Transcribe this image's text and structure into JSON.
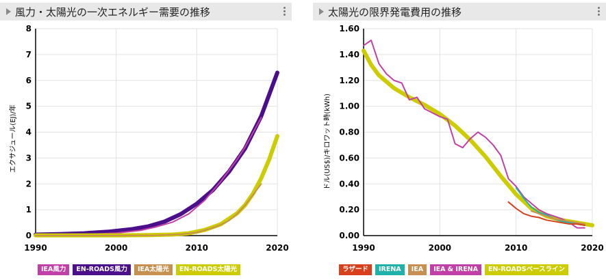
{
  "charts": {
    "left": {
      "title": "風力・太陽光の一次エネルギー需要の推移",
      "ylabel": "エクサジュール(EJ)/年"
    },
    "right": {
      "title": "太陽光の限界発電費用の推移",
      "ylabel": "ドル(US$)/キロワット時(kWh)"
    }
  },
  "legends": {
    "left": [
      {
        "label": "IEA風力",
        "color": "#c040a8"
      },
      {
        "label": "EN-ROADS風力",
        "color": "#4b0f8c"
      },
      {
        "label": "IEA太陽光",
        "color": "#c89050"
      },
      {
        "label": "EN-ROADS太陽光",
        "color": "#cccc00"
      }
    ],
    "right": [
      {
        "label": "ラザード",
        "color": "#d8401c"
      },
      {
        "label": "IRENA",
        "color": "#20b2aa"
      },
      {
        "label": "IEA",
        "color": "#c89050"
      },
      {
        "label": "IEA & IRENA",
        "color": "#c040a8"
      },
      {
        "label": "EN-ROADSベースライン",
        "color": "#cccc00"
      }
    ]
  },
  "chart_data": [
    {
      "type": "line",
      "title": "風力・太陽光の一次エネルギー需要の推移",
      "xlabel": "",
      "ylabel": "エクサジュール(EJ)/年",
      "xlim": [
        1990,
        2020
      ],
      "ylim": [
        0,
        8
      ],
      "xticks": [
        1990,
        2000,
        2010,
        2020
      ],
      "yticks": [
        0,
        1,
        2,
        3,
        4,
        5,
        6,
        7,
        8
      ],
      "ytick_labels": [
        "0",
        "1",
        "2",
        "3",
        "4",
        "5",
        "6",
        "7",
        "8"
      ],
      "series": [
        {
          "name": "EN-ROADS風力",
          "color": "#4b0f8c",
          "width": 6,
          "x": [
            1990,
            1993,
            1996,
            1999,
            2002,
            2004,
            2006,
            2008,
            2010,
            2012,
            2014,
            2016,
            2018,
            2020
          ],
          "y": [
            0.04,
            0.06,
            0.09,
            0.15,
            0.25,
            0.36,
            0.54,
            0.83,
            1.23,
            1.76,
            2.47,
            3.37,
            4.62,
            6.3
          ]
        },
        {
          "name": "IEA風力",
          "color": "#c040a8",
          "width": 2,
          "x": [
            1990,
            1995,
            2000,
            2003,
            2005,
            2007,
            2009,
            2011,
            2013,
            2015,
            2016,
            2017,
            2018
          ],
          "y": [
            0.01,
            0.03,
            0.1,
            0.2,
            0.34,
            0.52,
            0.84,
            1.37,
            2.1,
            2.94,
            3.42,
            3.99,
            4.56
          ]
        },
        {
          "name": "EN-ROADS太陽光",
          "color": "#cccc00",
          "width": 6,
          "x": [
            1990,
            1996,
            2000,
            2004,
            2007,
            2009,
            2011,
            2013,
            2015,
            2016,
            2017,
            2018,
            2019,
            2020
          ],
          "y": [
            0.01,
            0.01,
            0.01,
            0.02,
            0.04,
            0.09,
            0.22,
            0.44,
            0.86,
            1.18,
            1.63,
            2.22,
            2.95,
            3.85
          ]
        },
        {
          "name": "IEA太陽光",
          "color": "#c89050",
          "width": 2,
          "x": [
            1990,
            2000,
            2005,
            2008,
            2010,
            2012,
            2013,
            2014,
            2015,
            2016,
            2017,
            2018
          ],
          "y": [
            0.0,
            0.0,
            0.01,
            0.05,
            0.12,
            0.3,
            0.42,
            0.58,
            0.84,
            1.17,
            1.58,
            2.0
          ]
        }
      ]
    },
    {
      "type": "line",
      "title": "太陽光の限界発電費用の推移",
      "xlabel": "",
      "ylabel": "ドル(US$)/キロワット時(kWh)",
      "xlim": [
        1990,
        2020
      ],
      "ylim": [
        0,
        1.6
      ],
      "xticks": [
        1990,
        2000,
        2010,
        2020
      ],
      "yticks": [
        0,
        0.2,
        0.4,
        0.6,
        0.8,
        1.0,
        1.2,
        1.4,
        1.6
      ],
      "ytick_labels": [
        "0.00",
        "0.20",
        "0.40",
        "0.60",
        "0.80",
        "1.00",
        "1.20",
        "1.40",
        "1.60"
      ],
      "series": [
        {
          "name": "EN-ROADSベースライン",
          "color": "#cccc00",
          "width": 6,
          "x": [
            1990,
            1991,
            1992,
            1994,
            1996,
            1998,
            2000,
            2002,
            2004,
            2006,
            2008,
            2010,
            2012,
            2014,
            2016,
            2018,
            2020
          ],
          "y": [
            1.43,
            1.32,
            1.24,
            1.14,
            1.07,
            1.01,
            0.94,
            0.85,
            0.74,
            0.61,
            0.46,
            0.32,
            0.21,
            0.15,
            0.12,
            0.1,
            0.08
          ]
        },
        {
          "name": "IEA & IRENA",
          "color": "#c040a8",
          "width": 2,
          "x": [
            1990,
            1991,
            1992,
            1993,
            1994,
            1995,
            1996,
            1997,
            1998,
            1999,
            2000,
            2001,
            2002,
            2003,
            2004,
            2005,
            2006,
            2007,
            2008,
            2009,
            2010,
            2011,
            2012,
            2013,
            2014,
            2015,
            2016,
            2017,
            2018,
            2019
          ],
          "y": [
            1.47,
            1.51,
            1.33,
            1.25,
            1.2,
            1.18,
            1.05,
            1.07,
            0.98,
            0.95,
            0.92,
            0.9,
            0.71,
            0.68,
            0.75,
            0.8,
            0.76,
            0.7,
            0.62,
            0.44,
            0.38,
            0.3,
            0.25,
            0.2,
            0.17,
            0.15,
            0.13,
            0.1,
            0.06,
            0.06
          ]
        },
        {
          "name": "IRENA",
          "color": "#20b2aa",
          "width": 2,
          "x": [
            2010,
            2011,
            2012,
            2013,
            2014,
            2015,
            2016,
            2017,
            2018,
            2019
          ],
          "y": [
            0.37,
            0.29,
            0.22,
            0.18,
            0.16,
            0.13,
            0.11,
            0.1,
            0.09,
            0.08
          ]
        },
        {
          "name": "IEA",
          "color": "#c89050",
          "width": 2,
          "x": [
            2012,
            2013,
            2014,
            2015,
            2016,
            2017,
            2018,
            2019
          ],
          "y": [
            0.19,
            0.17,
            0.15,
            0.13,
            0.12,
            0.11,
            0.1,
            0.09
          ]
        },
        {
          "name": "ラザード",
          "color": "#d8401c",
          "width": 2,
          "x": [
            2009,
            2010,
            2011,
            2012,
            2013,
            2014,
            2015,
            2016,
            2017,
            2018,
            2019
          ],
          "y": [
            0.26,
            0.21,
            0.17,
            0.15,
            0.14,
            0.12,
            0.11,
            0.1,
            0.09,
            0.09,
            0.08
          ]
        }
      ]
    }
  ]
}
